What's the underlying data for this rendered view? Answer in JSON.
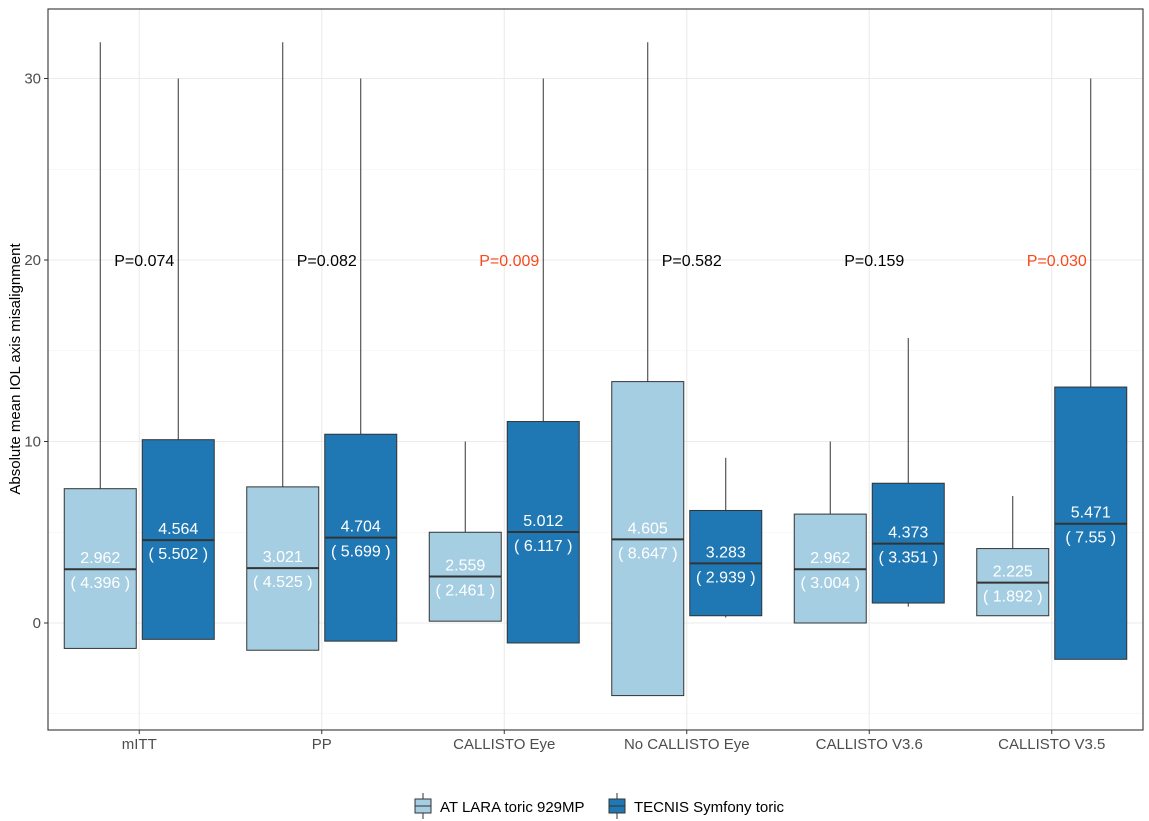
{
  "chart_data": {
    "type": "boxplot",
    "ylabel": "Absolute mean IOL axis misalignment",
    "xlabel": "",
    "ylim": [
      -5.9,
      32.6
    ],
    "yticks": [
      0,
      10,
      20,
      30
    ],
    "grid": true,
    "legend_position": "bottom",
    "categories": [
      "mITT",
      "PP",
      "CALLISTO Eye",
      "No CALLISTO Eye",
      "CALLISTO V3.6",
      "CALLISTO V3.5"
    ],
    "series": [
      {
        "name": "AT LARA toric 929MP",
        "color": "#A6CEE3",
        "boxes": [
          {
            "whisker_low": -1.4,
            "q1": -1.4,
            "median": 2.962,
            "q3": 7.4,
            "whisker_high": 32.0,
            "mean_label": "2.962",
            "sd_label": "( 4.396 )"
          },
          {
            "whisker_low": -1.5,
            "q1": -1.5,
            "median": 3.021,
            "q3": 7.5,
            "whisker_high": 32.0,
            "mean_label": "3.021",
            "sd_label": "( 4.525 )"
          },
          {
            "whisker_low": 0.1,
            "q1": 0.1,
            "median": 2.559,
            "q3": 5.0,
            "whisker_high": 10.0,
            "mean_label": "2.559",
            "sd_label": "( 2.461 )"
          },
          {
            "whisker_low": -4.0,
            "q1": -4.0,
            "median": 4.605,
            "q3": 13.3,
            "whisker_high": 32.0,
            "mean_label": "4.605",
            "sd_label": "( 8.647 )"
          },
          {
            "whisker_low": 0.0,
            "q1": 0.0,
            "median": 2.962,
            "q3": 6.0,
            "whisker_high": 10.0,
            "mean_label": "2.962",
            "sd_label": "( 3.004 )"
          },
          {
            "whisker_low": 0.4,
            "q1": 0.4,
            "median": 2.225,
            "q3": 4.1,
            "whisker_high": 7.0,
            "mean_label": "2.225",
            "sd_label": "( 1.892 )"
          }
        ]
      },
      {
        "name": "TECNIS Symfony toric",
        "color": "#1F78B4",
        "boxes": [
          {
            "whisker_low": -0.9,
            "q1": -0.9,
            "median": 4.564,
            "q3": 10.1,
            "whisker_high": 30.0,
            "mean_label": "4.564",
            "sd_label": "( 5.502 )"
          },
          {
            "whisker_low": -1.0,
            "q1": -1.0,
            "median": 4.704,
            "q3": 10.4,
            "whisker_high": 30.0,
            "mean_label": "4.704",
            "sd_label": "( 5.699 )"
          },
          {
            "whisker_low": -1.1,
            "q1": -1.1,
            "median": 5.012,
            "q3": 11.1,
            "whisker_high": 30.0,
            "mean_label": "5.012",
            "sd_label": "( 6.117 )"
          },
          {
            "whisker_low": 0.3,
            "q1": 0.4,
            "median": 3.283,
            "q3": 6.2,
            "whisker_high": 9.1,
            "mean_label": "3.283",
            "sd_label": "( 2.939 )"
          },
          {
            "whisker_low": 0.9,
            "q1": 1.1,
            "median": 4.373,
            "q3": 7.7,
            "whisker_high": 15.7,
            "mean_label": "4.373",
            "sd_label": "( 3.351 )"
          },
          {
            "whisker_low": -2.0,
            "q1": -2.0,
            "median": 5.471,
            "q3": 13.0,
            "whisker_high": 30.0,
            "mean_label": "5.471",
            "sd_label": "( 7.55 )"
          }
        ]
      }
    ],
    "pvalues": [
      {
        "label": "P=0.074",
        "y": 20,
        "color": "#000000"
      },
      {
        "label": "P=0.082",
        "y": 20,
        "color": "#000000"
      },
      {
        "label": "P=0.009",
        "y": 20,
        "color": "#F8481C"
      },
      {
        "label": "P=0.582",
        "y": 20,
        "color": "#000000"
      },
      {
        "label": "P=0.159",
        "y": 20,
        "color": "#000000"
      },
      {
        "label": "P=0.030",
        "y": 20,
        "color": "#F8481C"
      }
    ]
  }
}
